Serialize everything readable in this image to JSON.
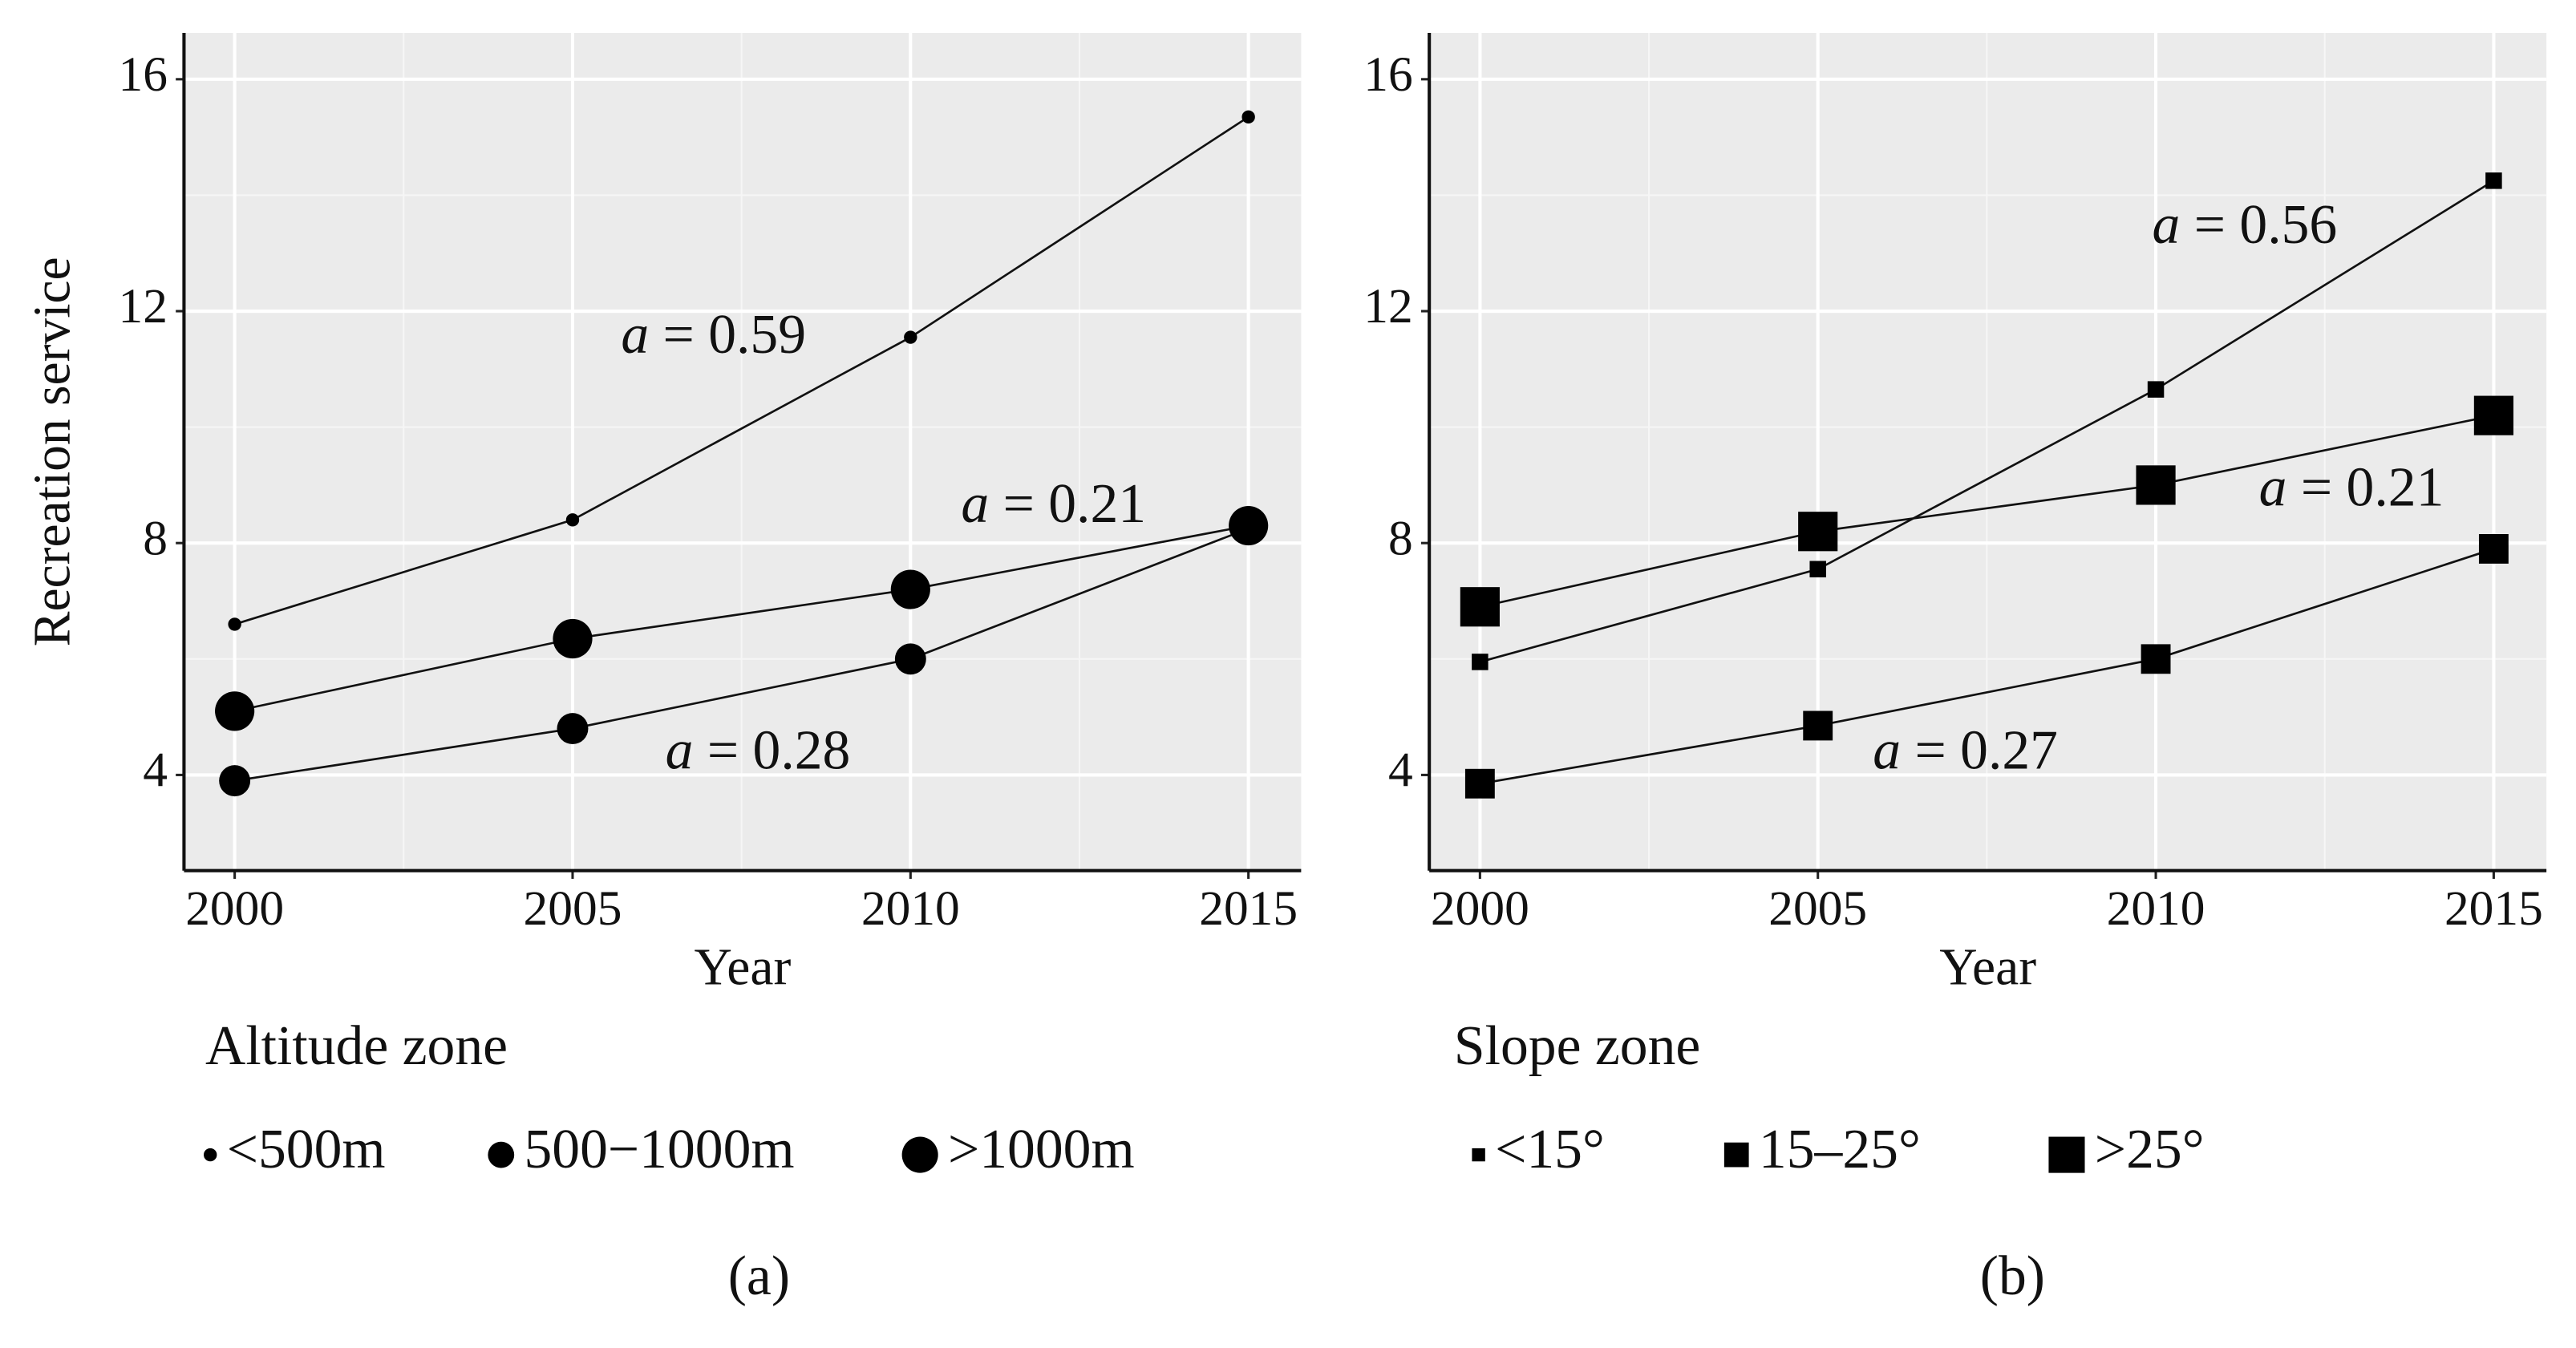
{
  "chart_data": [
    {
      "type": "line",
      "xlabel": "Year",
      "ylabel": "Recreation service",
      "marker": "circle",
      "x": [
        2000,
        2005,
        2010,
        2015
      ],
      "xlim": [
        1999.25,
        2015.78
      ],
      "xticks": [
        2000,
        2005,
        2010,
        2015
      ],
      "ylim": [
        2.35,
        16.8
      ],
      "yticks": [
        4,
        8,
        12,
        16
      ],
      "grid": true,
      "color": "#111111",
      "legend_title": "Altitude zone",
      "series": [
        {
          "name": "<500m",
          "values": [
            6.6,
            8.4,
            11.55,
            15.35
          ]
        },
        {
          "name": "500−1000m",
          "values": [
            3.9,
            4.8,
            6.0,
            8.25
          ]
        },
        {
          "name": ">1000m",
          "values": [
            5.1,
            6.35,
            7.2,
            8.3
          ]
        }
      ],
      "annotations": [
        "a = 0.59",
        "a = 0.21",
        "a = 0.28"
      ],
      "caption": "(a)"
    },
    {
      "type": "line",
      "xlabel": "Year",
      "marker": "square",
      "x": [
        2000,
        2005,
        2010,
        2015
      ],
      "xlim": [
        1999.25,
        2015.78
      ],
      "xticks": [
        2000,
        2005,
        2010,
        2015
      ],
      "ylim": [
        2.35,
        16.8
      ],
      "yticks": [
        4,
        8,
        12,
        16
      ],
      "grid": true,
      "color": "#111111",
      "legend_title": "Slope zone",
      "series": [
        {
          "name": "<15°",
          "values": [
            5.95,
            7.55,
            10.65,
            14.25
          ]
        },
        {
          "name": "15–25°",
          "values": [
            3.85,
            4.85,
            6.0,
            7.9
          ]
        },
        {
          "name": ">25°",
          "values": [
            6.9,
            8.2,
            9.0,
            10.2
          ]
        }
      ],
      "annotations": [
        "a = 0.56",
        "a = 0.21",
        "a = 0.27"
      ],
      "caption": "(b)"
    }
  ]
}
